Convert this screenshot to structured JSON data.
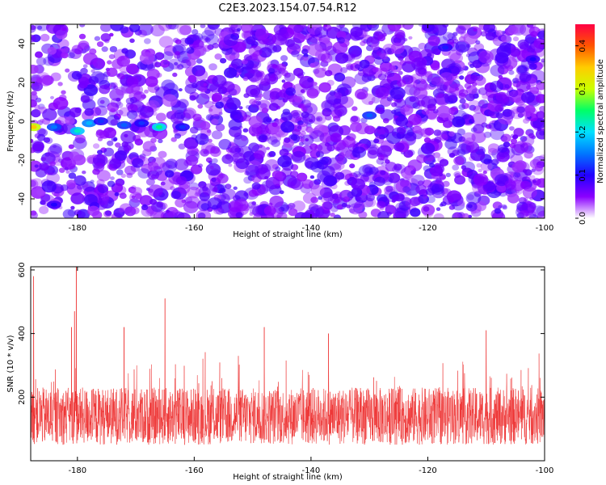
{
  "title": "C2E3.2023.154.07.54.R12",
  "colors": {
    "snr_line": "#ee3333",
    "colorbar": [
      "#ffffff",
      "#8a00ff",
      "#2200ff",
      "#0077ff",
      "#00e0ff",
      "#00ff66",
      "#ccff00",
      "#ffcc00",
      "#ff5500",
      "#ff0044"
    ]
  },
  "chart_data": [
    {
      "type": "heatmap",
      "name": "spectrogram",
      "xlabel": "Height of straight line (km)",
      "ylabel": "Frequency (Hz)",
      "xlim": [
        -188,
        -100
      ],
      "ylim": [
        -50,
        50
      ],
      "xticks": [
        -180,
        -160,
        -140,
        -120,
        -100
      ],
      "yticks": [
        -40,
        -20,
        0,
        20,
        40
      ],
      "colorbar": {
        "label": "Normalized spectral amplitude",
        "range": [
          0,
          0.45
        ],
        "ticks": [
          0.0,
          0.1,
          0.2,
          0.3,
          0.4
        ]
      },
      "features": [
        {
          "x": -187.5,
          "y": -3,
          "value": 0.35
        },
        {
          "x": -184,
          "y": -3,
          "value": 0.15
        },
        {
          "x": -180,
          "y": -5,
          "value": 0.22
        },
        {
          "x": -178,
          "y": -1,
          "value": 0.18
        },
        {
          "x": -176,
          "y": 0,
          "value": 0.12
        },
        {
          "x": -172,
          "y": -2,
          "value": 0.14
        },
        {
          "x": -169,
          "y": -1,
          "value": 0.12
        },
        {
          "x": -166,
          "y": -3,
          "value": 0.24
        },
        {
          "x": -162,
          "y": -3,
          "value": 0.12
        },
        {
          "x": -130,
          "y": 3,
          "value": 0.14
        },
        {
          "x": -117,
          "y": 38,
          "value": 0.11
        },
        {
          "x": -102,
          "y": 32,
          "value": 0.1
        },
        {
          "x": -184,
          "y": -43,
          "value": 0.1
        }
      ]
    },
    {
      "type": "line",
      "name": "snr",
      "xlabel": "Height of straight line (km)",
      "ylabel": "SNR (10 * v/v)",
      "xlim": [
        -188,
        -100
      ],
      "ylim": [
        0,
        610
      ],
      "xticks": [
        -180,
        -160,
        -140,
        -120,
        -100
      ],
      "yticks": [
        200,
        400,
        600
      ],
      "baseline_mean": 140,
      "spikes": [
        {
          "x": -187.5,
          "y": 580
        },
        {
          "x": -181,
          "y": 420
        },
        {
          "x": -180.5,
          "y": 470
        },
        {
          "x": -180.2,
          "y": 610
        },
        {
          "x": -172,
          "y": 420
        },
        {
          "x": -165,
          "y": 510
        },
        {
          "x": -148,
          "y": 420
        },
        {
          "x": -137,
          "y": 400
        },
        {
          "x": -110,
          "y": 410
        }
      ]
    }
  ]
}
